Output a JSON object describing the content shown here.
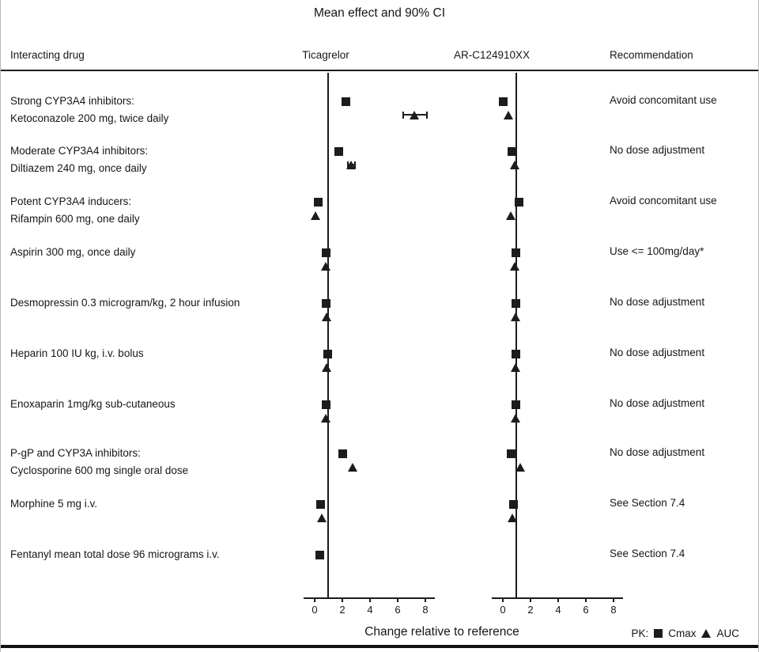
{
  "title": "Mean effect and 90% CI",
  "columns": {
    "drug": "Interacting drug",
    "panel1": "Ticagrelor",
    "panel2": "AR-C124910XX",
    "recommendation": "Recommendation"
  },
  "axis": {
    "xlabel": "Change relative to reference"
  },
  "legend": {
    "pk": "PK:",
    "cmax": "Cmax",
    "auc": "AUC"
  },
  "chart_data": {
    "type": "scatter",
    "title": "Mean effect and 90% CI",
    "xlabel": "Change relative to reference",
    "x_ticks": [
      0,
      2,
      4,
      6,
      8
    ],
    "xlim": [
      -0.8,
      9
    ],
    "reference_line": 1,
    "panels": [
      "Ticagrelor",
      "AR-C124910XX"
    ],
    "marker_legend": {
      "square": "Cmax",
      "triangle": "AUC"
    },
    "rows": [
      {
        "label_lines": [
          "Strong CYP3A4 inhibitors:",
          "Ketoconazole 200 mg, twice daily"
        ],
        "recommendation": "Avoid concomitant use",
        "ticagrelor": {
          "cmax": 2.3,
          "auc": 7.3,
          "auc_ci": [
            6.4,
            8.2
          ]
        },
        "arc124910xx": {
          "cmax": 0.1,
          "auc": 0.5
        }
      },
      {
        "label_lines": [
          "Moderate CYP3A4 inhibitors:",
          "Diltiazem 240 mg, once daily"
        ],
        "recommendation": "No dose adjustment",
        "ticagrelor": {
          "cmax": 1.8,
          "auc": 2.7,
          "auc_ci": [
            2.4,
            3.0
          ]
        },
        "arc124910xx": {
          "cmax": 0.7,
          "auc": 0.95
        }
      },
      {
        "label_lines": [
          "Potent CYP3A4 inducers:",
          "Rifampin 600 mg, one daily"
        ],
        "recommendation": "Avoid concomitant use",
        "ticagrelor": {
          "cmax": 0.3,
          "auc": 0.15
        },
        "arc124910xx": {
          "cmax": 1.2,
          "auc": 0.65
        }
      },
      {
        "label_lines": [
          "Aspirin 300 mg, once daily"
        ],
        "recommendation": "Use <= 100mg/day*",
        "ticagrelor": {
          "cmax": 0.9,
          "auc": 0.9
        },
        "arc124910xx": {
          "cmax": 1.0,
          "auc": 0.95
        }
      },
      {
        "label_lines": [
          "Desmopressin 0.3  microgram/kg, 2 hour infusion"
        ],
        "recommendation": "No dose adjustment",
        "ticagrelor": {
          "cmax": 0.9,
          "auc": 0.95
        },
        "arc124910xx": {
          "cmax": 1.0,
          "auc": 1.0
        }
      },
      {
        "label_lines": [
          "Heparin 100 IU kg, i.v. bolus"
        ],
        "recommendation": "No dose adjustment",
        "ticagrelor": {
          "cmax": 1.0,
          "auc": 0.95
        },
        "arc124910xx": {
          "cmax": 1.0,
          "auc": 1.0
        }
      },
      {
        "label_lines": [
          "Enoxaparin 1mg/kg sub-cutaneous"
        ],
        "recommendation": "No dose adjustment",
        "ticagrelor": {
          "cmax": 0.9,
          "auc": 0.9
        },
        "arc124910xx": {
          "cmax": 1.0,
          "auc": 1.0
        }
      },
      {
        "label_lines": [
          "P-gP and CYP3A inhibitors:",
          "Cyclosporine 600 mg single oral dose"
        ],
        "recommendation": "No dose adjustment",
        "ticagrelor": {
          "cmax": 2.1,
          "auc": 2.8
        },
        "arc124910xx": {
          "cmax": 0.65,
          "auc": 1.35
        }
      },
      {
        "label_lines": [
          "Morphine 5 mg i.v."
        ],
        "recommendation": "See Section 7.4",
        "ticagrelor": {
          "cmax": 0.5,
          "auc": 0.6
        },
        "arc124910xx": {
          "cmax": 0.85,
          "auc": 0.75
        }
      },
      {
        "label_lines": [
          "Fentanyl mean total dose 96 micrograms i.v."
        ],
        "recommendation": "See Section 7.4",
        "ticagrelor": {
          "cmax": 0.45
        },
        "arc124910xx": null
      }
    ]
  }
}
